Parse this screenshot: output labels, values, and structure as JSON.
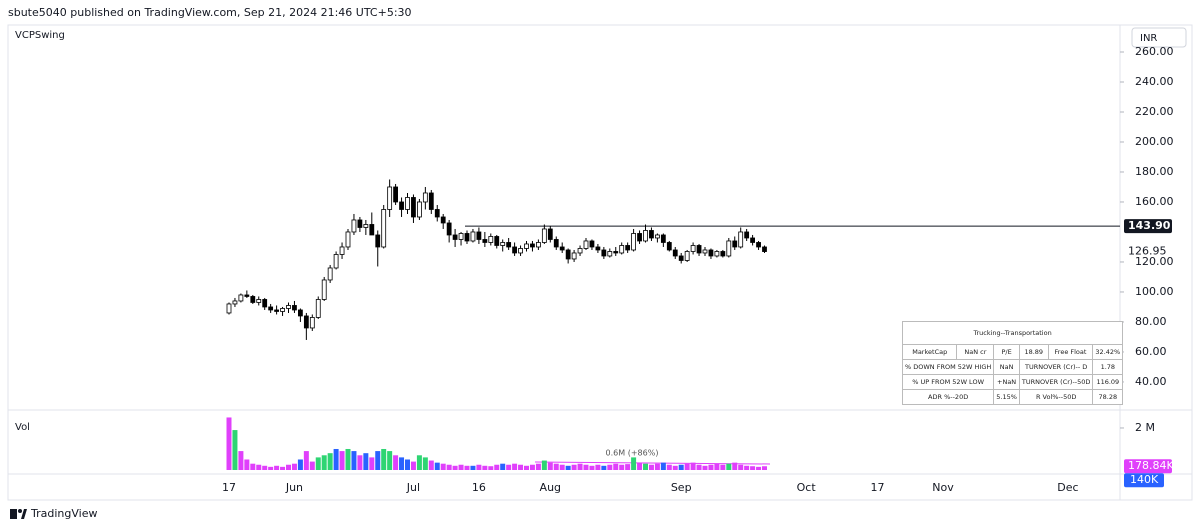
{
  "header": {
    "text": "sbute5040 published on TradingView.com, Sep 21, 2024 21:46 UTC+5:30",
    "currency": "INR"
  },
  "footer": {
    "brand": "TradingView"
  },
  "table": {
    "title": "Trucking--Transportation",
    "rows": [
      [
        "MarketCap",
        "NaN cr",
        "P/E",
        "18.89",
        "Free Float",
        "32.42%"
      ],
      [
        "% DOWN FROM 52W HIGH",
        "NaN",
        "TURNOVER  (Cr)-- D",
        "1.78"
      ],
      [
        "% UP FROM 52W LOW",
        "+NaN",
        "TURNOVER (Cr)--50D",
        "116.09"
      ],
      [
        "ADR %--20D",
        "5.15%",
        "R Vol%--50D",
        "78.28"
      ]
    ]
  },
  "chart_data": {
    "type": "candlestick",
    "title": "VCPSwing",
    "volume_title": "Vol",
    "up_color": "#ffffff",
    "down_color": "#000000",
    "wick_color": "#000000",
    "categories": [
      "17",
      null,
      null,
      null,
      null,
      null,
      null,
      null,
      null,
      null,
      null,
      "Jun",
      null,
      null,
      null,
      null,
      null,
      null,
      null,
      null,
      null,
      null,
      null,
      null,
      null,
      null,
      null,
      null,
      null,
      null,
      null,
      "Jul",
      null,
      null,
      null,
      null,
      null,
      null,
      null,
      null,
      null,
      null,
      "16",
      null,
      null,
      null,
      null,
      null,
      null,
      null,
      null,
      null,
      null,
      null,
      "Aug",
      null,
      null,
      null,
      null,
      null,
      null,
      null,
      null,
      null,
      null,
      null,
      null,
      null,
      null,
      null,
      null,
      null,
      null,
      null,
      null,
      null,
      "Sep",
      null,
      null,
      null,
      null,
      null,
      null,
      null,
      null,
      null,
      null,
      null,
      null,
      null,
      null,
      null,
      null,
      null,
      null,
      null,
      null,
      "Oct",
      null,
      null,
      null,
      null,
      null,
      null,
      null,
      null,
      null,
      null,
      null,
      "17",
      null,
      null,
      null,
      null,
      null,
      null,
      null,
      null,
      null,
      null,
      "Nov",
      null,
      null,
      null,
      null,
      null,
      null,
      null,
      null,
      null,
      null,
      null,
      null,
      null,
      null,
      null,
      null,
      null,
      null,
      null,
      null,
      "Dec"
    ],
    "open": [
      86,
      92,
      94,
      98,
      97,
      93,
      95,
      90,
      88,
      87,
      89,
      91,
      88,
      84,
      76,
      83,
      95,
      108,
      116,
      125,
      130,
      140,
      148,
      143,
      145,
      138,
      130,
      155,
      170,
      160,
      155,
      163,
      150,
      160,
      166,
      155,
      150,
      146,
      138,
      135,
      139,
      134,
      140,
      135,
      133,
      137,
      131,
      133,
      130,
      126,
      129,
      132,
      130,
      133,
      142,
      135,
      130,
      128,
      122,
      126,
      129,
      134,
      130,
      128,
      124,
      127,
      126,
      131,
      128,
      139,
      134,
      141,
      136,
      138,
      133,
      128,
      124,
      121,
      127,
      131,
      126,
      128,
      124,
      127,
      124,
      134,
      130,
      140,
      136,
      133,
      130,
      null,
      null,
      null,
      null,
      null,
      null,
      null,
      null,
      null,
      null,
      null,
      null,
      null,
      null,
      null,
      null,
      null,
      null,
      null,
      null,
      null,
      null,
      null,
      null,
      null,
      null,
      null,
      null,
      null,
      null,
      null,
      null,
      null,
      null,
      null,
      null,
      null,
      null,
      null,
      null,
      null,
      null,
      null,
      null,
      null,
      null,
      null,
      null,
      null,
      null,
      null
    ],
    "high": [
      93,
      96,
      99,
      101,
      98,
      97,
      96,
      92,
      91,
      90,
      93,
      94,
      89,
      86,
      85,
      97,
      110,
      118,
      127,
      133,
      142,
      152,
      150,
      148,
      153,
      141,
      158,
      175,
      172,
      163,
      166,
      165,
      162,
      170,
      168,
      158,
      152,
      148,
      142,
      140,
      141,
      142,
      143,
      140,
      139,
      138,
      135,
      136,
      133,
      131,
      134,
      134,
      135,
      145,
      144,
      137,
      133,
      129,
      128,
      131,
      136,
      135,
      132,
      130,
      129,
      130,
      133,
      133,
      142,
      141,
      145,
      143,
      139,
      139,
      134,
      130,
      126,
      128,
      133,
      132,
      130,
      129,
      128,
      128,
      136,
      137,
      143,
      142,
      138,
      134,
      131,
      null,
      null,
      null,
      null,
      null,
      null,
      null,
      null,
      null,
      null,
      null,
      null,
      null,
      null,
      null,
      null,
      null,
      null,
      null,
      null,
      null,
      null,
      null,
      null,
      null,
      null,
      null,
      null,
      null,
      null,
      null,
      null,
      null,
      null,
      null,
      null,
      null,
      null,
      null,
      null,
      null,
      null,
      null,
      null,
      null,
      null,
      null,
      null,
      null,
      null,
      null
    ],
    "low": [
      85,
      90,
      93,
      96,
      92,
      91,
      88,
      86,
      85,
      84,
      86,
      86,
      80,
      68,
      74,
      82,
      94,
      106,
      115,
      122,
      128,
      138,
      140,
      138,
      140,
      117,
      129,
      150,
      158,
      150,
      152,
      146,
      148,
      155,
      152,
      147,
      142,
      133,
      130,
      131,
      132,
      133,
      132,
      130,
      131,
      129,
      127,
      128,
      124,
      124,
      127,
      127,
      128,
      132,
      133,
      128,
      126,
      119,
      120,
      124,
      128,
      128,
      126,
      122,
      123,
      124,
      125,
      126,
      127,
      132,
      133,
      134,
      133,
      130,
      127,
      122,
      119,
      120,
      125,
      124,
      124,
      122,
      123,
      123,
      123,
      128,
      129,
      134,
      131,
      128,
      126,
      null,
      null,
      null,
      null,
      null,
      null,
      null,
      null,
      null,
      null,
      null,
      null,
      null,
      null,
      null,
      null,
      null,
      null,
      null,
      null,
      null,
      null,
      null,
      null,
      null,
      null,
      null,
      null,
      null,
      null,
      null,
      null,
      null,
      null,
      null,
      null,
      null,
      null,
      null,
      null,
      null,
      null,
      null,
      null,
      null,
      null,
      null,
      null,
      null,
      null,
      null
    ],
    "close": [
      92,
      94,
      98,
      97,
      93,
      95,
      90,
      88,
      87,
      89,
      91,
      88,
      84,
      76,
      83,
      95,
      108,
      116,
      125,
      130,
      140,
      148,
      143,
      145,
      138,
      130,
      155,
      170,
      160,
      155,
      163,
      150,
      160,
      166,
      155,
      150,
      146,
      138,
      135,
      139,
      134,
      140,
      135,
      133,
      137,
      131,
      133,
      130,
      126,
      129,
      132,
      130,
      133,
      142,
      135,
      130,
      128,
      122,
      126,
      129,
      134,
      130,
      128,
      124,
      127,
      126,
      131,
      128,
      139,
      134,
      141,
      136,
      138,
      133,
      128,
      124,
      121,
      127,
      131,
      126,
      128,
      124,
      127,
      124,
      134,
      130,
      140,
      136,
      133,
      130,
      126.95,
      null,
      null,
      null,
      null,
      null,
      null,
      null,
      null,
      null,
      null,
      null,
      null,
      null,
      null,
      null,
      null,
      null,
      null,
      null,
      null,
      null,
      null,
      null,
      null,
      null,
      null,
      null,
      null,
      null,
      null,
      null,
      null,
      null,
      null,
      null,
      null,
      null,
      null,
      null,
      null,
      null,
      null,
      null,
      null,
      null,
      null,
      null,
      null,
      null,
      null,
      null
    ],
    "volume": [
      2500000,
      1900000,
      900000,
      500000,
      300000,
      250000,
      200000,
      150000,
      200000,
      150000,
      250000,
      300000,
      500000,
      900000,
      400000,
      600000,
      700000,
      800000,
      1000000,
      900000,
      1000000,
      900000,
      700000,
      800000,
      600000,
      900000,
      1000000,
      900000,
      700000,
      600000,
      500000,
      400000,
      700000,
      600000,
      450000,
      350000,
      300000,
      250000,
      200000,
      250000,
      200000,
      200000,
      250000,
      200000,
      180000,
      250000,
      300000,
      250000,
      300000,
      250000,
      200000,
      250000,
      300000,
      450000,
      350000,
      300000,
      250000,
      200000,
      250000,
      300000,
      250000,
      200000,
      250000,
      200000,
      250000,
      300000,
      250000,
      280000,
      600000,
      350000,
      300000,
      250000,
      300000,
      350000,
      250000,
      200000,
      250000,
      300000,
      350000,
      250000,
      200000,
      250000,
      300000,
      250000,
      300000,
      350000,
      250000,
      200000,
      180000,
      150000,
      178840,
      null,
      null,
      null,
      null,
      null,
      null,
      null,
      null,
      null,
      null,
      null,
      null,
      null,
      null,
      null,
      null,
      null,
      null,
      null,
      null,
      null,
      null,
      null,
      null,
      null,
      null,
      null,
      null,
      null,
      null,
      null,
      null,
      null,
      null,
      null,
      null,
      null,
      null,
      null,
      null,
      null,
      null,
      null,
      null,
      null,
      null,
      null,
      null,
      null,
      null,
      null
    ],
    "volume_colors": [
      "#e040fb",
      "#2ed573",
      "#e040fb",
      "#e040fb",
      "#e040fb",
      "#e040fb",
      "#e040fb",
      "#e040fb",
      "#e040fb",
      "#e040fb",
      "#e040fb",
      "#e040fb",
      "#2962ff",
      "#e040fb",
      "#e040fb",
      "#2ed573",
      "#2ed573",
      "#2ed573",
      "#2962ff",
      "#e040fb",
      "#2ed573",
      "#2962ff",
      "#e040fb",
      "#2962ff",
      "#e040fb",
      "#2962ff",
      "#2ed573",
      "#2ed573",
      "#e040fb",
      "#2962ff",
      "#2962ff",
      "#e040fb",
      "#2ed573",
      "#2ed573",
      "#e040fb",
      "#2962ff",
      "#e040fb",
      "#e040fb",
      "#e040fb",
      "#e040fb",
      "#e040fb",
      "#2962ff",
      "#e040fb",
      "#e040fb",
      "#e040fb",
      "#e040fb",
      "#2962ff",
      "#e040fb",
      "#e040fb",
      "#e040fb",
      "#e040fb",
      "#e040fb",
      "#e040fb",
      "#2ed573",
      "#e040fb",
      "#e040fb",
      "#e040fb",
      "#2962ff",
      "#e040fb",
      "#e040fb",
      "#e040fb",
      "#e040fb",
      "#e040fb",
      "#2962ff",
      "#e040fb",
      "#e040fb",
      "#e040fb",
      "#e040fb",
      "#2ed573",
      "#e040fb",
      "#2ed573",
      "#e040fb",
      "#e040fb",
      "#2962ff",
      "#e040fb",
      "#e040fb",
      "#2962ff",
      "#e040fb",
      "#e040fb",
      "#e040fb",
      "#e040fb",
      "#e040fb",
      "#e040fb",
      "#e040fb",
      "#2ed573",
      "#e040fb",
      "#e040fb",
      "#e040fb",
      "#e040fb",
      "#e040fb",
      "#e040fb",
      null,
      null,
      null,
      null,
      null,
      null,
      null,
      null,
      null,
      null,
      null,
      null,
      null,
      null,
      null,
      null,
      null,
      null,
      null,
      null,
      null,
      null,
      null,
      null,
      null,
      null,
      null,
      null,
      null,
      null,
      null,
      null,
      null,
      null,
      null,
      null,
      null,
      null,
      null,
      null,
      null,
      null,
      null,
      null,
      null,
      null,
      null,
      null,
      null,
      null,
      null
    ],
    "ylim": [
      21.3,
      278
    ],
    "yticks": [
      {
        "value": 40,
        "label": "40.00"
      },
      {
        "value": 60,
        "label": "60.00"
      },
      {
        "value": 80,
        "label": "80.00"
      },
      {
        "value": 100,
        "label": "100.00"
      },
      {
        "value": 120,
        "label": "120.00"
      },
      {
        "value": 160,
        "label": "160.00"
      },
      {
        "value": 180,
        "label": "180.00"
      },
      {
        "value": 200,
        "label": "200.00"
      },
      {
        "value": 220,
        "label": "220.00"
      },
      {
        "value": 240,
        "label": "240.00"
      },
      {
        "value": 260,
        "label": "260.00"
      }
    ],
    "level": {
      "value": 143.9,
      "label": "143.90"
    },
    "volume_ylim": [
      0,
      2760000
    ],
    "volume_yticks": [
      {
        "value": 2000000,
        "label": "2 M"
      }
    ],
    "volume_last": {
      "value": 178840,
      "label": "178.84K"
    },
    "volume_ma": {
      "value": 140000,
      "label": "140K"
    },
    "volume_annotation": "0.6M (+86%)"
  }
}
